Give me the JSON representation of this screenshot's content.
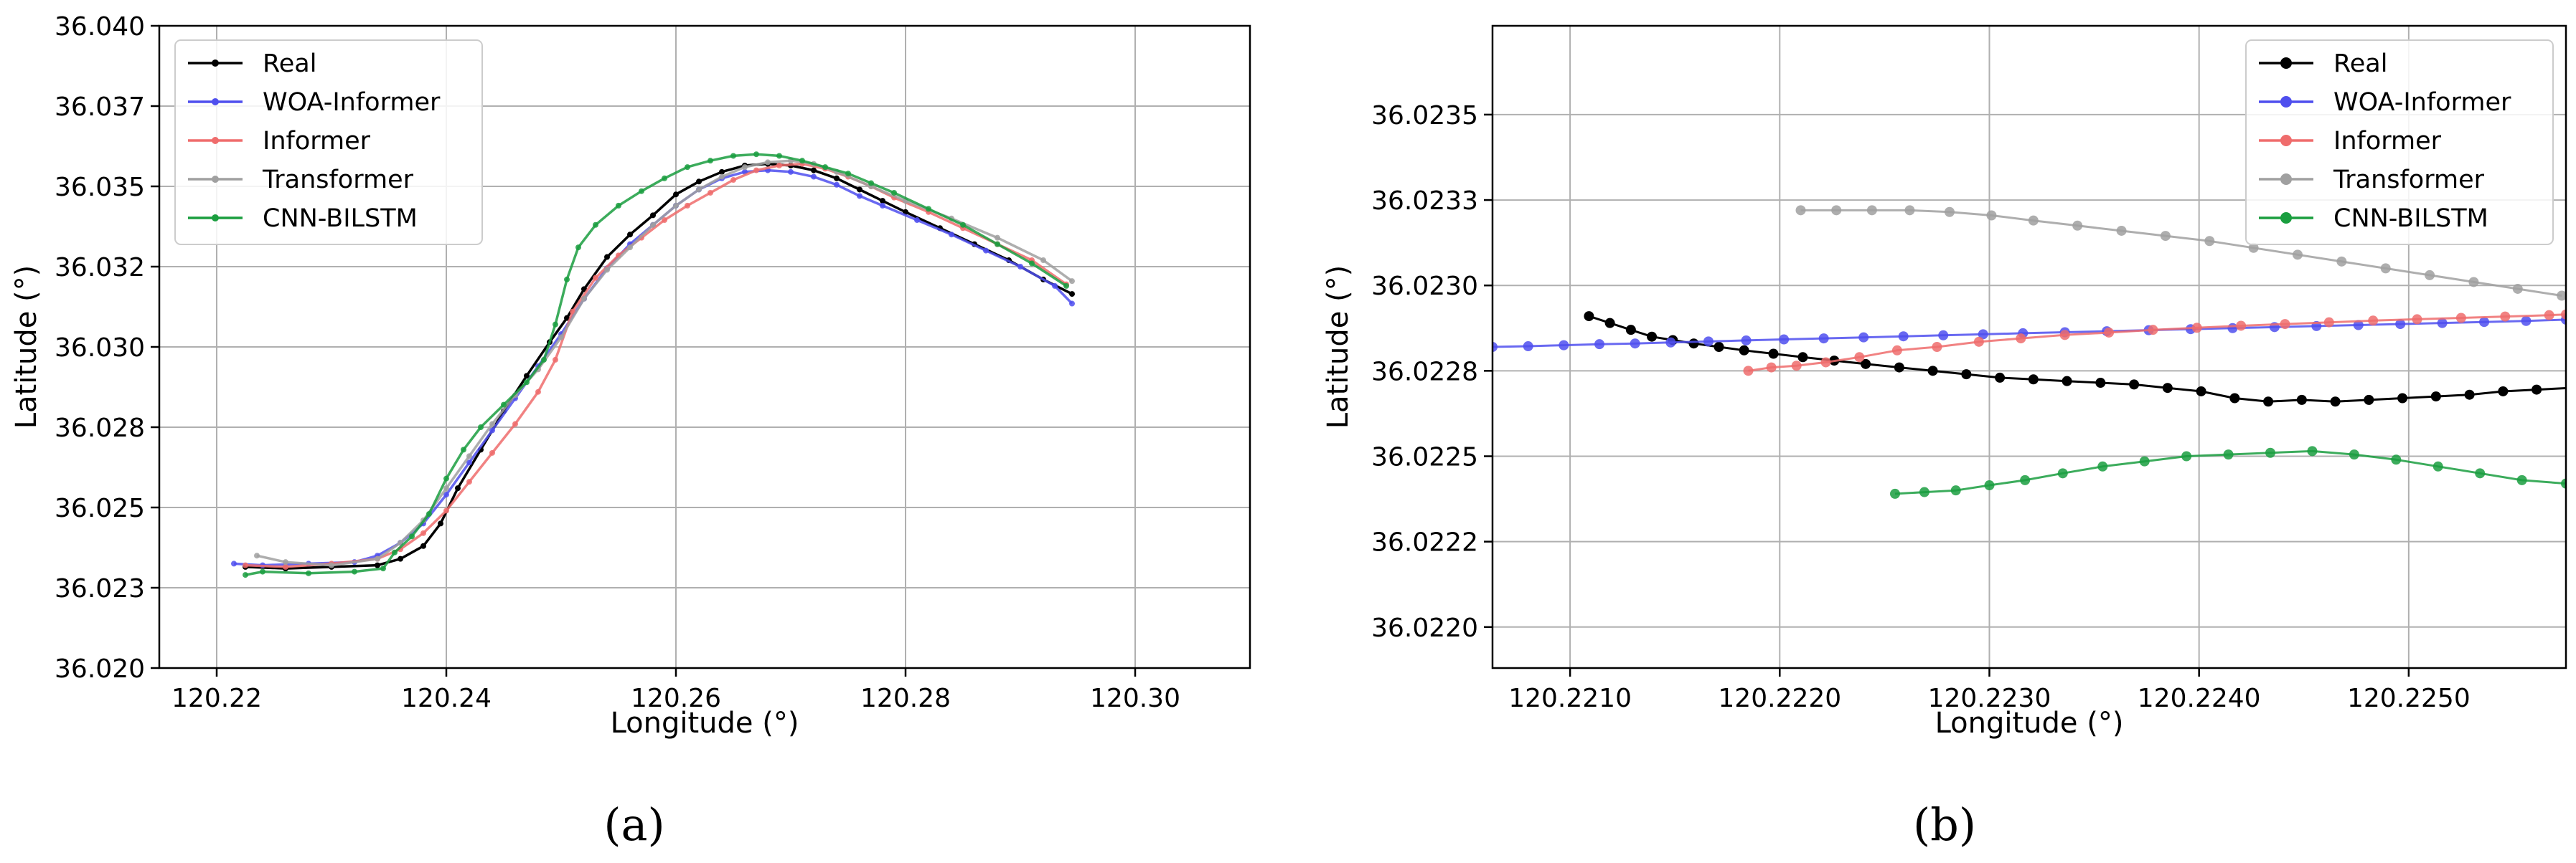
{
  "chart_data": [
    {
      "type": "line",
      "panel_label": "(a)",
      "xlabel": "Longitude (°)",
      "ylabel": "Latitude (°)",
      "xlim": [
        120.215,
        120.31
      ],
      "ylim": [
        36.02,
        36.04
      ],
      "x_ticks": [
        "120.22",
        "120.24",
        "120.26",
        "120.28",
        "120.30"
      ],
      "x_tick_values": [
        120.22,
        120.24,
        120.26,
        120.28,
        120.3
      ],
      "y_ticks": [
        "36.020",
        "36.023",
        "36.025",
        "36.028",
        "36.030",
        "36.032",
        "36.035",
        "36.037",
        "36.040"
      ],
      "y_tick_values": [
        36.02,
        36.0225,
        36.025,
        36.0275,
        36.03,
        36.0325,
        36.035,
        36.0375,
        36.04
      ],
      "grid": true,
      "legend_position": "top-left",
      "series": [
        {
          "name": "Real",
          "color": "#000000",
          "marker_size": 4,
          "x": [
            120.2225,
            120.226,
            120.23,
            120.234,
            120.236,
            120.238,
            120.2395,
            120.241,
            120.243,
            120.245,
            120.247,
            120.249,
            120.2505,
            120.252,
            120.254,
            120.256,
            120.258,
            120.26,
            120.262,
            120.264,
            120.266,
            120.268,
            120.27,
            120.272,
            120.274,
            120.276,
            120.278,
            120.28,
            120.283,
            120.286,
            120.289,
            120.292,
            120.2945
          ],
          "y": [
            36.02315,
            36.0231,
            36.02315,
            36.0232,
            36.0234,
            36.0238,
            36.0245,
            36.0256,
            36.0268,
            36.028,
            36.0291,
            36.03015,
            36.0309,
            36.0318,
            36.0328,
            36.0335,
            36.0341,
            36.03475,
            36.03515,
            36.03545,
            36.03565,
            36.0357,
            36.03565,
            36.0355,
            36.03525,
            36.0349,
            36.03455,
            36.0342,
            36.0337,
            36.0332,
            36.0327,
            36.0321,
            36.03165
          ]
        },
        {
          "name": "WOA-Informer",
          "color": "#4f4fee",
          "marker_size": 4,
          "x": [
            120.2215,
            120.224,
            120.228,
            120.232,
            120.234,
            120.236,
            120.238,
            120.24,
            120.242,
            120.244,
            120.246,
            120.248,
            120.25,
            120.252,
            120.254,
            120.256,
            120.258,
            120.26,
            120.262,
            120.264,
            120.266,
            120.268,
            120.27,
            120.272,
            120.274,
            120.276,
            120.278,
            120.281,
            120.284,
            120.287,
            120.29,
            120.293,
            120.2945
          ],
          "y": [
            36.02325,
            36.0232,
            36.02325,
            36.0233,
            36.0235,
            36.0239,
            36.0245,
            36.0254,
            36.0264,
            36.0274,
            36.0284,
            36.0294,
            36.0304,
            36.0315,
            36.03245,
            36.0332,
            36.0338,
            36.0344,
            36.0349,
            36.03525,
            36.03545,
            36.0355,
            36.03545,
            36.0353,
            36.03505,
            36.0347,
            36.0344,
            36.03395,
            36.0335,
            36.033,
            36.0325,
            36.0319,
            36.03135
          ]
        },
        {
          "name": "Informer",
          "color": "#ef6c6c",
          "marker_size": 4,
          "x": [
            120.2225,
            120.226,
            120.23,
            120.234,
            120.236,
            120.238,
            120.24,
            120.242,
            120.244,
            120.246,
            120.248,
            120.2495,
            120.251,
            120.253,
            120.255,
            120.257,
            120.259,
            120.261,
            120.263,
            120.265,
            120.267,
            120.269,
            120.271,
            120.273,
            120.275,
            120.277,
            120.279,
            120.282,
            120.285,
            120.288,
            120.291,
            120.294
          ],
          "y": [
            36.0232,
            36.02315,
            36.02325,
            36.0234,
            36.0237,
            36.0242,
            36.0249,
            36.0258,
            36.0267,
            36.0276,
            36.0286,
            36.0296,
            36.0311,
            36.03215,
            36.03285,
            36.0334,
            36.03395,
            36.0344,
            36.0348,
            36.0352,
            36.0355,
            36.03565,
            36.0357,
            36.03555,
            36.0353,
            36.035,
            36.03465,
            36.0342,
            36.0337,
            36.0332,
            36.0327,
            36.03195
          ]
        },
        {
          "name": "Transformer",
          "color": "#a0a0a0",
          "marker_size": 4,
          "x": [
            120.2235,
            120.226,
            120.23,
            120.234,
            120.236,
            120.238,
            120.24,
            120.242,
            120.244,
            120.246,
            120.248,
            120.25,
            120.252,
            120.254,
            120.256,
            120.258,
            120.26,
            120.262,
            120.264,
            120.266,
            120.268,
            120.27,
            120.272,
            120.274,
            120.277,
            120.28,
            120.284,
            120.288,
            120.292,
            120.2945
          ],
          "y": [
            36.0235,
            36.0233,
            36.0232,
            36.0234,
            36.0239,
            36.0246,
            36.0256,
            36.0266,
            36.0276,
            36.0285,
            36.0293,
            36.0303,
            36.0315,
            36.0324,
            36.0331,
            36.0338,
            36.0344,
            36.0349,
            36.0353,
            36.0356,
            36.03575,
            36.0358,
            36.0357,
            36.03545,
            36.035,
            36.03455,
            36.034,
            36.0334,
            36.0327,
            36.03205
          ]
        },
        {
          "name": "CNN-BILSTM",
          "color": "#1a9e3f",
          "marker_size": 4,
          "x": [
            120.2225,
            120.224,
            120.228,
            120.232,
            120.2345,
            120.2355,
            120.237,
            120.2385,
            120.24,
            120.2415,
            120.243,
            120.245,
            120.247,
            120.2485,
            120.2495,
            120.2505,
            120.2515,
            120.253,
            120.255,
            120.257,
            120.259,
            120.261,
            120.263,
            120.265,
            120.267,
            120.269,
            120.271,
            120.273,
            120.275,
            120.277,
            120.279,
            120.282,
            120.285,
            120.288,
            120.291,
            120.294
          ],
          "y": [
            36.0229,
            36.023,
            36.02295,
            36.023,
            36.0231,
            36.0236,
            36.0241,
            36.0248,
            36.0259,
            36.0268,
            36.0275,
            36.0282,
            36.0289,
            36.0296,
            36.0307,
            36.0321,
            36.0331,
            36.0338,
            36.0344,
            36.03485,
            36.03525,
            36.0356,
            36.0358,
            36.03595,
            36.036,
            36.03595,
            36.0358,
            36.0356,
            36.0354,
            36.0351,
            36.0348,
            36.0343,
            36.0338,
            36.0332,
            36.0326,
            36.0319
          ]
        }
      ]
    },
    {
      "type": "line",
      "panel_label": "(b)",
      "xlabel": "Longitude (°)",
      "ylabel": "Latitude (°)",
      "xlim": [
        120.22063,
        120.22575
      ],
      "ylim": [
        36.02188,
        36.02376
      ],
      "x_ticks": [
        "120.2210",
        "120.2220",
        "120.2230",
        "120.2240",
        "120.2250"
      ],
      "x_tick_values": [
        120.221,
        120.222,
        120.223,
        120.224,
        120.225
      ],
      "y_ticks": [
        "36.0220",
        "36.0222",
        "36.0225",
        "36.0228",
        "36.0230",
        "36.0233",
        "36.0235"
      ],
      "y_tick_values": [
        36.022,
        36.02225,
        36.0225,
        36.02275,
        36.023,
        36.02325,
        36.0235
      ],
      "grid": true,
      "legend_position": "top-right",
      "series": [
        {
          "name": "Real",
          "color": "#000000",
          "marker_size": 7,
          "x": [
            120.22109,
            120.22119,
            120.22129,
            120.22139,
            120.22149,
            120.22159,
            120.22171,
            120.22183,
            120.22197,
            120.22211,
            120.22226,
            120.22241,
            120.22257,
            120.22273,
            120.22289,
            120.22305,
            120.22321,
            120.22337,
            120.22353,
            120.22369,
            120.22385,
            120.22401,
            120.22417,
            120.22433,
            120.22449,
            120.22465,
            120.22481,
            120.22497,
            120.22513,
            120.22529,
            120.22545,
            120.22561,
            120.22577
          ],
          "y": [
            36.02291,
            36.02289,
            36.02287,
            36.02285,
            36.02284,
            36.02283,
            36.02282,
            36.02281,
            36.0228,
            36.02279,
            36.02278,
            36.02277,
            36.02276,
            36.02275,
            36.02274,
            36.02273,
            36.022725,
            36.02272,
            36.022715,
            36.02271,
            36.0227,
            36.02269,
            36.02267,
            36.02266,
            36.022665,
            36.02266,
            36.022665,
            36.02267,
            36.022675,
            36.02268,
            36.02269,
            36.022695,
            36.0227
          ]
        },
        {
          "name": "WOA-Informer",
          "color": "#4f4fee",
          "marker_size": 7,
          "x": [
            120.22063,
            120.2208,
            120.22097,
            120.22114,
            120.22131,
            120.22148,
            120.22166,
            120.22184,
            120.22202,
            120.22221,
            120.2224,
            120.22259,
            120.22278,
            120.22297,
            120.22316,
            120.22336,
            120.22356,
            120.22376,
            120.22396,
            120.22416,
            120.22436,
            120.22456,
            120.22476,
            120.22496,
            120.22516,
            120.22536,
            120.22556,
            120.22575
          ],
          "y": [
            36.02282,
            36.022822,
            36.022825,
            36.022828,
            36.02283,
            36.022833,
            36.022836,
            36.022839,
            36.022842,
            36.022845,
            36.022848,
            36.022851,
            36.022854,
            36.022857,
            36.02286,
            36.022863,
            36.022866,
            36.022869,
            36.022872,
            36.022875,
            36.022878,
            36.022881,
            36.022884,
            36.022887,
            36.02289,
            36.022893,
            36.022896,
            36.0229
          ]
        },
        {
          "name": "Informer",
          "color": "#ef6c6c",
          "marker_size": 7,
          "x": [
            120.22185,
            120.22196,
            120.22208,
            120.22222,
            120.22238,
            120.22256,
            120.22275,
            120.22295,
            120.22315,
            120.22336,
            120.22357,
            120.22378,
            120.22399,
            120.2242,
            120.22441,
            120.22462,
            120.22483,
            120.22504,
            120.22525,
            120.22546,
            120.22567,
            120.22575
          ],
          "y": [
            36.02275,
            36.02276,
            36.022765,
            36.022775,
            36.02279,
            36.02281,
            36.02282,
            36.022835,
            36.022845,
            36.022855,
            36.022862,
            36.02287,
            36.022876,
            36.022882,
            36.022887,
            36.022892,
            36.022897,
            36.022901,
            36.022905,
            36.022909,
            36.022913,
            36.022915
          ]
        },
        {
          "name": "Transformer",
          "color": "#a0a0a0",
          "marker_size": 7,
          "x": [
            120.2221,
            120.22227,
            120.22244,
            120.22262,
            120.22281,
            120.22301,
            120.22321,
            120.22342,
            120.22363,
            120.22384,
            120.22405,
            120.22426,
            120.22447,
            120.22468,
            120.22489,
            120.2251,
            120.22531,
            120.22552,
            120.22573
          ],
          "y": [
            36.02322,
            36.02322,
            36.02322,
            36.02322,
            36.023215,
            36.023205,
            36.02319,
            36.023175,
            36.02316,
            36.023145,
            36.02313,
            36.02311,
            36.02309,
            36.02307,
            36.02305,
            36.02303,
            36.02301,
            36.02299,
            36.02297
          ]
        },
        {
          "name": "CNN-BILSTM",
          "color": "#1a9e3f",
          "marker_size": 7,
          "x": [
            120.22255,
            120.22269,
            120.22284,
            120.223,
            120.22317,
            120.22335,
            120.22354,
            120.22374,
            120.22394,
            120.22414,
            120.22434,
            120.22454,
            120.22474,
            120.22494,
            120.22514,
            120.22534,
            120.22554,
            120.22575
          ],
          "y": [
            36.02239,
            36.022395,
            36.0224,
            36.022415,
            36.02243,
            36.02245,
            36.02247,
            36.022485,
            36.0225,
            36.022505,
            36.02251,
            36.022515,
            36.022505,
            36.02249,
            36.02247,
            36.02245,
            36.02243,
            36.02242
          ]
        }
      ]
    }
  ]
}
